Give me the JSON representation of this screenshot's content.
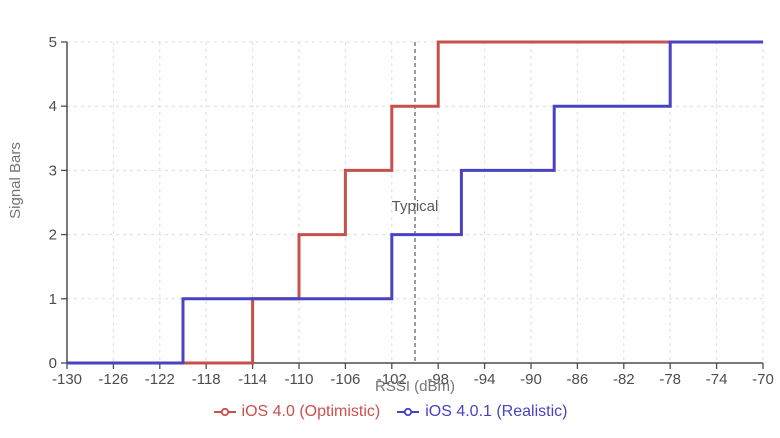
{
  "chart_data": {
    "type": "line",
    "subtype": "step",
    "title": "",
    "xlabel": "RSSI (dBm)",
    "ylabel": "Signal Bars",
    "xlim": [
      -130,
      -70
    ],
    "ylim": [
      0,
      5
    ],
    "x_ticks": [
      -130,
      -126,
      -122,
      -118,
      -114,
      -110,
      -106,
      -102,
      -98,
      -94,
      -90,
      -86,
      -82,
      -78,
      -74,
      -70
    ],
    "y_ticks": [
      0,
      1,
      2,
      3,
      4,
      5
    ],
    "grid": "dashed",
    "legend_position": "bottom",
    "annotation": {
      "label": "Typical",
      "x": -100
    },
    "series": [
      {
        "name": "iOS 4.0 (Optimistic)",
        "color": "#c8504c",
        "points": [
          [
            -130,
            0
          ],
          [
            -114,
            0
          ],
          [
            -114,
            1
          ],
          [
            -110,
            1
          ],
          [
            -110,
            2
          ],
          [
            -106,
            2
          ],
          [
            -106,
            3
          ],
          [
            -102,
            3
          ],
          [
            -102,
            4
          ],
          [
            -98,
            4
          ],
          [
            -98,
            5
          ],
          [
            -78,
            5
          ]
        ]
      },
      {
        "name": "iOS 4.0.1 (Realistic)",
        "color": "#4843c2",
        "points": [
          [
            -130,
            0
          ],
          [
            -120,
            0
          ],
          [
            -120,
            1
          ],
          [
            -102,
            1
          ],
          [
            -102,
            2
          ],
          [
            -96,
            2
          ],
          [
            -96,
            3
          ],
          [
            -88,
            3
          ],
          [
            -88,
            4
          ],
          [
            -78,
            4
          ],
          [
            -78,
            5
          ],
          [
            -70,
            5
          ]
        ]
      }
    ],
    "colors": {
      "grid": "#dcdcdc",
      "axis": "#4d4d4d",
      "tick_text": "#4d4d4d",
      "axis_label_text": "#73737a",
      "annotation_line": "#4a4a4a",
      "annotation_text": "#5a5a5a",
      "background": "#ffffff"
    }
  }
}
